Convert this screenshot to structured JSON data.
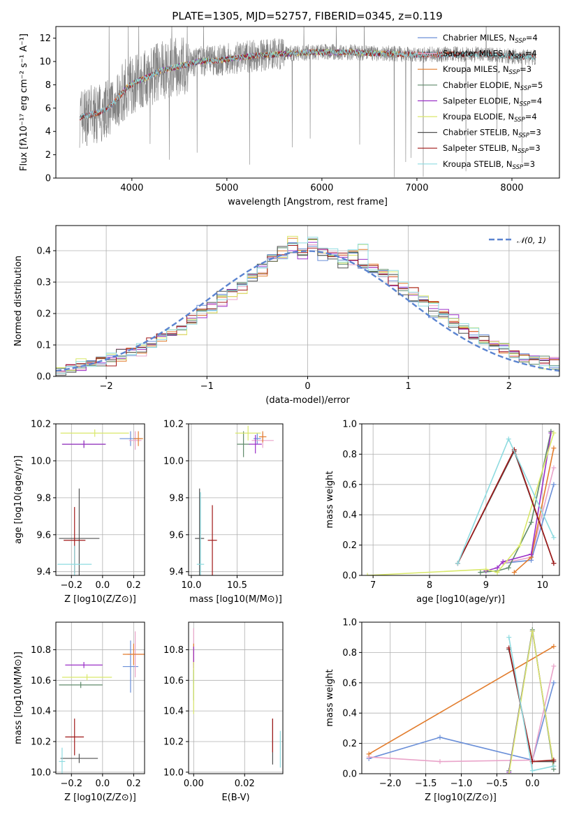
{
  "figure_title": "PLATE=1305, MJD=52757, FIBERID=0345, z=0.119",
  "chart_data": [
    {
      "type": "line",
      "id": "spectrum",
      "xlabel": "wavelength [Angstrom, rest frame]",
      "ylabel": "Flux [fλ10⁻¹⁷ erg cm⁻² s⁻¹ A⁻¹]",
      "xlim": [
        3200,
        8500
      ],
      "ylim": [
        0,
        13
      ],
      "xticks": [
        4000,
        5000,
        6000,
        7000,
        8000
      ],
      "yticks": [
        0,
        2,
        4,
        6,
        8,
        10,
        12
      ],
      "grid": false,
      "legend_placement": "right",
      "observed": {
        "color": "#808080",
        "x": [
          3450,
          3550,
          3650,
          3750,
          3850,
          3950,
          4050,
          4150,
          4300,
          4500,
          4700,
          4900,
          5100,
          5300,
          5500,
          5700,
          5900,
          6100,
          6300,
          6500,
          6700,
          6900,
          7100,
          7300,
          7500,
          7700,
          7900,
          8100,
          8250
        ],
        "y": [
          5.2,
          5.4,
          5.6,
          6.0,
          6.8,
          7.8,
          8.3,
          8.6,
          9.2,
          9.6,
          10.0,
          10.1,
          10.3,
          10.5,
          10.6,
          10.7,
          10.8,
          10.8,
          10.8,
          10.7,
          10.7,
          10.6,
          10.6,
          10.6,
          10.6,
          10.6,
          10.5,
          10.4,
          10.4
        ]
      },
      "series": [
        {
          "name": "Chabrier MILES, N_SSP=4",
          "label_main": "Chabrier MILES, N",
          "label_sub": "SSP",
          "label_tail": "=4",
          "color": "#6a8fd8"
        },
        {
          "name": "Salpeter MILES, N_SSP=4",
          "label_main": "Salpeter MILES, N",
          "label_sub": "SSP",
          "label_tail": "=4",
          "color": "#e9a3c9"
        },
        {
          "name": "Kroupa MILES, N_SSP=3",
          "label_main": "Kroupa MILES, N",
          "label_sub": "SSP",
          "label_tail": "=3",
          "color": "#e27c2c"
        },
        {
          "name": "Chabrier ELODIE, N_SSP=5",
          "label_main": "Chabrier ELODIE, N",
          "label_sub": "SSP",
          "label_tail": "=5",
          "color": "#5f8a6a"
        },
        {
          "name": "Salpeter ELODIE, N_SSP=4",
          "label_main": "Salpeter ELODIE, N",
          "label_sub": "SSP",
          "label_tail": "=4",
          "color": "#9b30c8"
        },
        {
          "name": "Kroupa ELODIE, N_SSP=4",
          "label_main": "Kroupa ELODIE, N",
          "label_sub": "SSP",
          "label_tail": "=4",
          "color": "#d9e86a"
        },
        {
          "name": "Chabrier STELIB, N_SSP=3",
          "label_main": "Chabrier STELIB, N",
          "label_sub": "SSP",
          "label_tail": "=3",
          "color": "#505050"
        },
        {
          "name": "Salpeter STELIB, N_SSP=3",
          "label_main": "Salpeter STELIB, N",
          "label_sub": "SSP",
          "label_tail": "=3",
          "color": "#a01818"
        },
        {
          "name": "Kroupa STELIB, N_SSP=3",
          "label_main": "Kroupa STELIB, N",
          "label_sub": "SSP",
          "label_tail": "=3",
          "color": "#8edbe0"
        }
      ]
    },
    {
      "type": "bar",
      "id": "residuals",
      "xlabel": "(data-model)/error",
      "ylabel": "Normed distribution",
      "xlim": [
        -2.5,
        2.5
      ],
      "ylim": [
        0,
        0.48
      ],
      "xticks": [
        -2,
        -1,
        0,
        1,
        2
      ],
      "yticks": [
        0.0,
        0.1,
        0.2,
        0.3,
        0.4
      ],
      "grid": true,
      "legend": "𝒩(0, 1)",
      "legend_placement": "top-right",
      "bins": [
        -2.5,
        -2.4,
        -2.3,
        -2.2,
        -2.1,
        -2.0,
        -1.9,
        -1.8,
        -1.7,
        -1.6,
        -1.5,
        -1.4,
        -1.3,
        -1.2,
        -1.1,
        -1.0,
        -0.9,
        -0.8,
        -0.7,
        -0.6,
        -0.5,
        -0.4,
        -0.3,
        -0.2,
        -0.1,
        0.0,
        0.1,
        0.2,
        0.3,
        0.4,
        0.5,
        0.6,
        0.7,
        0.8,
        0.9,
        1.0,
        1.1,
        1.2,
        1.3,
        1.4,
        1.5,
        1.6,
        1.7,
        1.8,
        1.9,
        2.0,
        2.1,
        2.2,
        2.3,
        2.4
      ],
      "hist_values": [
        [
          0.02,
          0.03,
          0.03,
          0.04,
          0.05,
          0.06,
          0.07,
          0.08,
          0.09,
          0.11,
          0.13,
          0.12,
          0.16,
          0.18,
          0.21,
          0.22,
          0.26,
          0.27,
          0.3,
          0.31,
          0.35,
          0.38,
          0.4,
          0.41,
          0.39,
          0.42,
          0.38,
          0.37,
          0.36,
          0.38,
          0.35,
          0.32,
          0.33,
          0.31,
          0.27,
          0.25,
          0.24,
          0.2,
          0.19,
          0.17,
          0.15,
          0.13,
          0.12,
          0.1,
          0.09,
          0.07,
          0.06,
          0.05,
          0.05,
          0.04
        ],
        [
          0.02,
          0.02,
          0.03,
          0.04,
          0.05,
          0.05,
          0.07,
          0.08,
          0.08,
          0.11,
          0.12,
          0.13,
          0.15,
          0.19,
          0.2,
          0.23,
          0.24,
          0.26,
          0.29,
          0.33,
          0.34,
          0.37,
          0.39,
          0.4,
          0.38,
          0.41,
          0.4,
          0.38,
          0.38,
          0.37,
          0.36,
          0.35,
          0.31,
          0.3,
          0.28,
          0.27,
          0.25,
          0.22,
          0.2,
          0.18,
          0.16,
          0.14,
          0.12,
          0.11,
          0.09,
          0.08,
          0.06,
          0.05,
          0.05,
          0.07
        ],
        [
          0.02,
          0.03,
          0.04,
          0.04,
          0.05,
          0.06,
          0.06,
          0.08,
          0.09,
          0.1,
          0.12,
          0.14,
          0.15,
          0.17,
          0.2,
          0.21,
          0.25,
          0.27,
          0.28,
          0.32,
          0.33,
          0.38,
          0.39,
          0.43,
          0.41,
          0.44,
          0.4,
          0.39,
          0.37,
          0.4,
          0.42,
          0.35,
          0.33,
          0.32,
          0.29,
          0.27,
          0.24,
          0.23,
          0.19,
          0.17,
          0.16,
          0.14,
          0.12,
          0.1,
          0.09,
          0.07,
          0.06,
          0.05,
          0.04,
          0.05
        ]
      ],
      "normal_curve_color": "#5b84d0"
    },
    {
      "type": "scatter",
      "id": "age-vs-Z",
      "xlabel": "Z [log10(Z/Z⊙)]",
      "ylabel": "age [log10(age/yr)]",
      "xlim": [
        -0.3,
        0.27
      ],
      "ylim": [
        9.38,
        10.2
      ],
      "xticks": [
        -0.2,
        0.0,
        0.2
      ],
      "yticks": [
        9.4,
        9.6,
        9.8,
        10.0,
        10.2
      ],
      "grid": true,
      "points": [
        {
          "x": 0.18,
          "y": 10.12,
          "xerr": 0.07,
          "yerr": 0.04,
          "color": "#6a8fd8"
        },
        {
          "x": 0.21,
          "y": 10.11,
          "xerr": 0.04,
          "yerr": 0.05,
          "color": "#e9a3c9"
        },
        {
          "x": 0.23,
          "y": 10.12,
          "xerr": 0.03,
          "yerr": 0.04,
          "color": "#e27c2c"
        },
        {
          "x": -0.12,
          "y": 10.09,
          "xerr": 0.14,
          "yerr": 0.02,
          "color": "#5f8a6a"
        },
        {
          "x": -0.12,
          "y": 10.09,
          "xerr": 0.14,
          "yerr": 0.02,
          "color": "#9b30c8"
        },
        {
          "x": -0.05,
          "y": 10.15,
          "xerr": 0.22,
          "yerr": 0.02,
          "color": "#d9e86a"
        },
        {
          "x": -0.15,
          "y": 9.58,
          "xerr": 0.13,
          "yerr": 0.27,
          "color": "#505050"
        },
        {
          "x": -0.18,
          "y": 9.57,
          "xerr": 0.07,
          "yerr": 0.18,
          "color": "#a01818"
        },
        {
          "x": -0.18,
          "y": 9.44,
          "xerr": 0.11,
          "yerr": 0.1,
          "color": "#8edbe0"
        }
      ]
    },
    {
      "type": "scatter",
      "id": "age-vs-mass",
      "xlabel": "mass [log10(M/M⊙)]",
      "ylabel": "",
      "xlim": [
        9.97,
        11.0
      ],
      "ylim": [
        9.38,
        10.2
      ],
      "xticks": [
        10.0,
        10.5
      ],
      "yticks": [
        9.4,
        9.6,
        9.8,
        10.0,
        10.2
      ],
      "grid": true,
      "points": [
        {
          "x": 10.72,
          "y": 10.12,
          "xerr": 0.04,
          "yerr": 0.03,
          "color": "#6a8fd8"
        },
        {
          "x": 10.78,
          "y": 10.11,
          "xerr": 0.12,
          "yerr": 0.04,
          "color": "#e9a3c9"
        },
        {
          "x": 10.78,
          "y": 10.13,
          "xerr": 0.04,
          "yerr": 0.03,
          "color": "#e27c2c"
        },
        {
          "x": 10.57,
          "y": 10.09,
          "xerr": 0.07,
          "yerr": 0.07,
          "color": "#5f8a6a"
        },
        {
          "x": 10.7,
          "y": 10.09,
          "xerr": 0.07,
          "yerr": 0.05,
          "color": "#9b30c8"
        },
        {
          "x": 10.62,
          "y": 10.15,
          "xerr": 0.14,
          "yerr": 0.04,
          "color": "#d9e86a"
        },
        {
          "x": 10.09,
          "y": 9.58,
          "xerr": 0.05,
          "yerr": 0.27,
          "color": "#505050"
        },
        {
          "x": 10.23,
          "y": 9.57,
          "xerr": 0.05,
          "yerr": 0.19,
          "color": "#a01818"
        },
        {
          "x": 10.1,
          "y": 9.44,
          "xerr": 0.04,
          "yerr": 0.39,
          "color": "#8edbe0"
        }
      ]
    },
    {
      "type": "line",
      "id": "mass-weight-vs-age",
      "xlabel": "age [log10(age/yr)]",
      "ylabel": "mass weight",
      "xlim": [
        6.8,
        10.3
      ],
      "ylim": [
        0,
        1.0
      ],
      "xticks": [
        7,
        8,
        9,
        10
      ],
      "yticks": [
        0.0,
        0.2,
        0.4,
        0.6,
        0.8,
        1.0
      ],
      "grid": true,
      "series": [
        {
          "color": "#6a8fd8",
          "x": [
            9.3,
            9.8,
            10.2
          ],
          "y": [
            0.08,
            0.1,
            0.6
          ]
        },
        {
          "color": "#e9a3c9",
          "x": [
            9.3,
            9.8,
            10.2
          ],
          "y": [
            0.08,
            0.12,
            0.71
          ]
        },
        {
          "color": "#e27c2c",
          "x": [
            9.5,
            9.8,
            10.2
          ],
          "y": [
            0.02,
            0.12,
            0.84
          ]
        },
        {
          "color": "#5f8a6a",
          "x": [
            8.9,
            9.2,
            9.4,
            9.8,
            10.15
          ],
          "y": [
            0.02,
            0.03,
            0.05,
            0.35,
            0.95
          ]
        },
        {
          "color": "#9b30c8",
          "x": [
            9.0,
            9.2,
            9.3,
            9.8,
            10.15
          ],
          "y": [
            0.03,
            0.05,
            0.09,
            0.14,
            0.94
          ]
        },
        {
          "color": "#d9e86a",
          "x": [
            6.9,
            9.0,
            9.2,
            9.6,
            10.2
          ],
          "y": [
            0.0,
            0.04,
            0.02,
            0.2,
            0.94
          ]
        },
        {
          "color": "#505050",
          "x": [
            8.5,
            9.5,
            10.2
          ],
          "y": [
            0.08,
            0.82,
            0.08
          ]
        },
        {
          "color": "#a01818",
          "x": [
            8.5,
            9.5,
            10.2
          ],
          "y": [
            0.08,
            0.83,
            0.08
          ]
        },
        {
          "color": "#8edbe0",
          "x": [
            8.5,
            9.4,
            10.2
          ],
          "y": [
            0.08,
            0.9,
            0.25
          ]
        }
      ]
    },
    {
      "type": "scatter",
      "id": "mass-vs-Z",
      "xlabel": "Z [log10(Z/Z⊙)]",
      "ylabel": "mass [log10(M/M⊙)]",
      "xlim": [
        -0.3,
        0.27
      ],
      "ylim": [
        9.99,
        10.98
      ],
      "xticks": [
        -0.2,
        0.0,
        0.2
      ],
      "yticks": [
        10.0,
        10.2,
        10.4,
        10.6,
        10.8
      ],
      "grid": true,
      "points": [
        {
          "x": 0.18,
          "y": 10.69,
          "xerr": 0.05,
          "yerr": 0.17,
          "color": "#6a8fd8"
        },
        {
          "x": 0.21,
          "y": 10.77,
          "xerr": 0.05,
          "yerr": 0.15,
          "color": "#e9a3c9"
        },
        {
          "x": 0.2,
          "y": 10.77,
          "xerr": 0.07,
          "yerr": 0.07,
          "color": "#e27c2c"
        },
        {
          "x": -0.14,
          "y": 10.57,
          "xerr": 0.14,
          "yerr": 0.02,
          "color": "#5f8a6a"
        },
        {
          "x": -0.12,
          "y": 10.7,
          "xerr": 0.12,
          "yerr": 0.02,
          "color": "#9b30c8"
        },
        {
          "x": -0.1,
          "y": 10.62,
          "xerr": 0.16,
          "yerr": 0.02,
          "color": "#d9e86a"
        },
        {
          "x": -0.15,
          "y": 10.09,
          "xerr": 0.12,
          "yerr": 0.03,
          "color": "#505050"
        },
        {
          "x": -0.18,
          "y": 10.23,
          "xerr": 0.06,
          "yerr": 0.12,
          "color": "#a01818"
        },
        {
          "x": -0.26,
          "y": 10.07,
          "xerr": 0.02,
          "yerr": 0.09,
          "color": "#8edbe0"
        }
      ]
    },
    {
      "type": "scatter",
      "id": "mass-vs-EBV",
      "xlabel": "E(B-V)",
      "ylabel": "",
      "xlim": [
        -0.002,
        0.035
      ],
      "ylim": [
        9.99,
        10.98
      ],
      "xticks": [
        0.0,
        0.02
      ],
      "xticklabels": [
        "0.00",
        "0.02"
      ],
      "yticks": [
        10.0,
        10.2,
        10.4,
        10.6,
        10.8
      ],
      "grid": true,
      "points": [
        {
          "x": 0.0,
          "y": 10.7,
          "xerr": 0.0,
          "yerr": 0.12,
          "color": "#6a8fd8"
        },
        {
          "x": 0.0,
          "y": 10.8,
          "xerr": 0.0,
          "yerr": 0.14,
          "color": "#e9a3c9"
        },
        {
          "x": 0.0,
          "y": 10.77,
          "xerr": 0.0,
          "yerr": 0.07,
          "color": "#e27c2c"
        },
        {
          "x": 0.0,
          "y": 10.57,
          "xerr": 0.0,
          "yerr": 0.1,
          "color": "#5f8a6a"
        },
        {
          "x": 0.0,
          "y": 10.75,
          "xerr": 0.0,
          "yerr": 0.07,
          "color": "#9b30c8"
        },
        {
          "x": 0.0,
          "y": 10.55,
          "xerr": 0.0,
          "yerr": 0.17,
          "color": "#d9e86a"
        },
        {
          "x": 0.031,
          "y": 10.2,
          "xerr": 0.0,
          "yerr": 0.15,
          "color": "#505050"
        },
        {
          "x": 0.031,
          "y": 10.24,
          "xerr": 0.0,
          "yerr": 0.11,
          "color": "#a01818"
        },
        {
          "x": 0.034,
          "y": 10.15,
          "xerr": 0.0,
          "yerr": 0.12,
          "color": "#8edbe0"
        }
      ]
    },
    {
      "type": "line",
      "id": "mass-weight-vs-Z",
      "xlabel": "Z [log10(Z/Z⊙)]",
      "ylabel": "mass weight",
      "xlim": [
        -2.4,
        0.38
      ],
      "ylim": [
        0,
        1.0
      ],
      "xticks": [
        -2.0,
        -1.5,
        -1.0,
        -0.5,
        0.0
      ],
      "xticklabels": [
        "−2.0",
        "−1.5",
        "−1.0",
        "−0.5",
        "0.0"
      ],
      "yticks": [
        0.0,
        0.2,
        0.4,
        0.6,
        0.8,
        1.0
      ],
      "grid": true,
      "series": [
        {
          "color": "#6a8fd8",
          "x": [
            -2.3,
            -1.3,
            0.0,
            0.3
          ],
          "y": [
            0.1,
            0.24,
            0.09,
            0.6
          ]
        },
        {
          "color": "#e9a3c9",
          "x": [
            -2.3,
            -1.3,
            0.0,
            0.3
          ],
          "y": [
            0.11,
            0.08,
            0.09,
            0.71
          ]
        },
        {
          "color": "#e27c2c",
          "x": [
            -2.3,
            0.3
          ],
          "y": [
            0.13,
            0.84
          ]
        },
        {
          "color": "#5f8a6a",
          "x": [
            -0.33,
            0.0,
            0.3
          ],
          "y": [
            0.02,
            0.95,
            0.03
          ]
        },
        {
          "color": "#9b30c8",
          "x": [
            -0.33,
            0.0,
            0.3
          ],
          "y": [
            0.01,
            0.94,
            0.05
          ]
        },
        {
          "color": "#d9e86a",
          "x": [
            -0.33,
            0.0,
            0.3
          ],
          "y": [
            0.0,
            0.94,
            0.05
          ]
        },
        {
          "color": "#505050",
          "x": [
            -0.33,
            0.0,
            0.3
          ],
          "y": [
            0.82,
            0.08,
            0.08
          ]
        },
        {
          "color": "#a01818",
          "x": [
            -0.33,
            0.0,
            0.3
          ],
          "y": [
            0.83,
            0.08,
            0.09
          ]
        },
        {
          "color": "#8edbe0",
          "x": [
            -0.33,
            0.0,
            0.3
          ],
          "y": [
            0.9,
            0.02,
            0.05
          ]
        }
      ]
    }
  ]
}
